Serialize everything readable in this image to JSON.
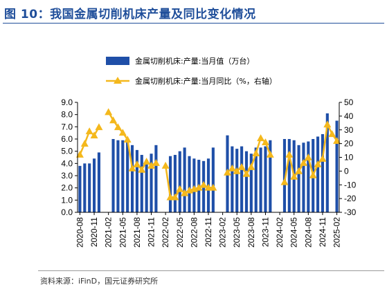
{
  "title": "图 10：我国金属切削机床产量及同比变化情况",
  "source": "资料来源：iFinD，国元证券研究所",
  "colors": {
    "bar": "#1F4FA8",
    "line": "#F4B81C",
    "title": "#1F4E9A"
  },
  "chart_data": {
    "type": "bar",
    "x": [
      "2020-08",
      "2020-09",
      "2020-10",
      "2020-11",
      "2020-12",
      "2021-01",
      "2021-02",
      "2021-03",
      "2021-04",
      "2021-05",
      "2021-06",
      "2021-07",
      "2021-08",
      "2021-09",
      "2021-10",
      "2021-11",
      "2021-12",
      "2022-01",
      "2022-02",
      "2022-03",
      "2022-04",
      "2022-05",
      "2022-06",
      "2022-07",
      "2022-08",
      "2022-09",
      "2022-10",
      "2022-11",
      "2022-12",
      "2023-01",
      "2023-02",
      "2023-03",
      "2023-04",
      "2023-05",
      "2023-06",
      "2023-07",
      "2023-08",
      "2023-09",
      "2023-10",
      "2023-11",
      "2023-12",
      "2024-01",
      "2024-02",
      "2024-03",
      "2024-04",
      "2024-05",
      "2024-06",
      "2024-07",
      "2024-08",
      "2024-09",
      "2024-10",
      "2024-11",
      "2024-12",
      "2025-01",
      "2025-02"
    ],
    "xtick_labels": [
      "2020-08",
      "2020-11",
      "2021-02",
      "2021-05",
      "2021-08",
      "2021-11",
      "2022-02",
      "2022-05",
      "2022-08",
      "2022-11",
      "2023-02",
      "2023-05",
      "2023-08",
      "2023-11",
      "2024-02",
      "2024-05",
      "2024-08",
      "2024-11",
      "2025-02"
    ],
    "series": [
      {
        "name": "金属切削机床:产量:当月值（万台）",
        "type": "bar",
        "axis": "left",
        "values": [
          3.8,
          4.0,
          4.0,
          4.4,
          4.9,
          null,
          null,
          6.0,
          5.9,
          5.9,
          5.8,
          5.5,
          5.1,
          4.7,
          4.3,
          4.8,
          5.5,
          null,
          null,
          4.6,
          4.7,
          5.0,
          5.3,
          4.6,
          4.4,
          4.3,
          4.2,
          4.4,
          5.3,
          null,
          null,
          6.3,
          5.4,
          5.2,
          5.4,
          5.0,
          4.8,
          5.3,
          5.3,
          5.4,
          5.9,
          null,
          null,
          6.0,
          6.0,
          5.9,
          5.5,
          5.7,
          5.8,
          6.0,
          6.2,
          6.4,
          8.1,
          null,
          7.5
        ]
      },
      {
        "name": "金属切削机床:产量:当月同比（%，右轴）",
        "type": "line",
        "axis": "right",
        "values": [
          12,
          20,
          29,
          26,
          32,
          null,
          43,
          37,
          32,
          28,
          23,
          2,
          5,
          1,
          7,
          4,
          6,
          null,
          4,
          -19,
          -19,
          -13,
          -16,
          -14,
          -13,
          -12,
          -10,
          -12,
          -12,
          null,
          null,
          -1,
          2,
          0,
          3,
          -2,
          3,
          13,
          24,
          21,
          12,
          null,
          null,
          -8,
          12,
          -4,
          0,
          6,
          10,
          -3,
          5,
          9,
          34,
          27,
          22
        ]
      }
    ],
    "y_left": {
      "min": 0,
      "max": 9,
      "step": 1,
      "ticks": [
        "0.0",
        "1.0",
        "2.0",
        "3.0",
        "4.0",
        "5.0",
        "6.0",
        "7.0",
        "8.0",
        "9.0"
      ]
    },
    "y_right": {
      "min": -30,
      "max": 50,
      "step": 10,
      "ticks": [
        "-30",
        "-20",
        "-10",
        "0",
        "10",
        "20",
        "30",
        "40",
        "50"
      ]
    },
    "grid": false,
    "legend": "top"
  }
}
